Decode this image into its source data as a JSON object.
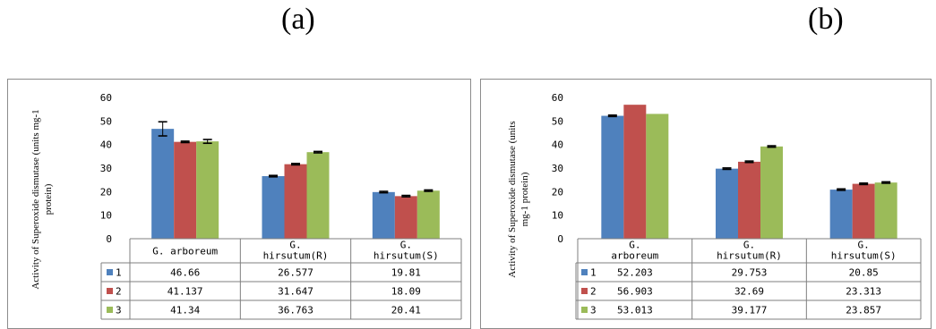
{
  "panels": [
    {
      "label": "(a)"
    },
    {
      "label": "(b)"
    }
  ],
  "chart_data": [
    {
      "type": "bar",
      "ylabel": "Activity of Superoxide dismutase (units mg-1 protein)",
      "ylabel_lines": [
        "Activity of Superoxide dismutase (units mg-1",
        "protein)"
      ],
      "ylim": [
        0,
        60
      ],
      "yticks": [
        "0",
        "10",
        "20",
        "30",
        "40",
        "50",
        "60"
      ],
      "categories": [
        "G. arboreum",
        "G. hirsutum(R)",
        "G. hirsutum(S)"
      ],
      "category_lines": [
        [
          "G. arboreum"
        ],
        [
          "G.",
          "hirsutum(R)"
        ],
        [
          "G.",
          "hirsutum(S)"
        ]
      ],
      "grid": false,
      "legend": "data-table",
      "series": [
        {
          "name": "1",
          "color": "#4f81bd",
          "values": [
            46.66,
            26.577,
            19.81
          ],
          "labels": [
            "46.66",
            "26.577",
            "19.81"
          ],
          "errors": [
            3.0,
            0.3,
            0.3
          ]
        },
        {
          "name": "2",
          "color": "#c0504d",
          "values": [
            41.137,
            31.647,
            18.09
          ],
          "labels": [
            "41.137",
            "31.647",
            "18.09"
          ],
          "errors": [
            0.3,
            0.3,
            0.3
          ]
        },
        {
          "name": "3",
          "color": "#9bbb59",
          "values": [
            41.34,
            36.763,
            20.41
          ],
          "labels": [
            "41.34",
            "36.763",
            "20.41"
          ],
          "errors": [
            0.8,
            0.3,
            0.3
          ]
        }
      ]
    },
    {
      "type": "bar",
      "ylabel": "Activity of Superoxide dismutase (units mg-1 protein)",
      "ylabel_lines": [
        "Activity of Superoxide dismutase (units",
        "mg-1 protein)"
      ],
      "ylim": [
        0,
        60
      ],
      "yticks": [
        "O",
        "10",
        "20",
        "30",
        "40",
        "50",
        "60"
      ],
      "categories": [
        "G. arboreum",
        "G. hirsutum(R)",
        "G. hirsutum(S)"
      ],
      "category_lines": [
        [
          "G.",
          "arboreum"
        ],
        [
          "G.",
          "hirsutum(R)"
        ],
        [
          "G.",
          "hirsutum(S)"
        ]
      ],
      "grid": false,
      "legend": "data-table",
      "series": [
        {
          "name": "1",
          "color": "#4f81bd",
          "values": [
            52.203,
            29.753,
            20.85
          ],
          "labels": [
            "52.203",
            "29.753",
            "20.85"
          ],
          "errors": [
            0.3,
            0.3,
            0.3
          ]
        },
        {
          "name": "2",
          "color": "#c0504d",
          "values": [
            56.903,
            32.69,
            23.313
          ],
          "labels": [
            "56.903",
            "32.69",
            "23.313"
          ],
          "errors": [
            0,
            0.3,
            0.3
          ]
        },
        {
          "name": "3",
          "color": "#9bbb59",
          "values": [
            53.013,
            39.177,
            23.857
          ],
          "labels": [
            "53.013",
            "39.177",
            "23.857"
          ],
          "errors": [
            0,
            0.3,
            0.3
          ]
        }
      ]
    }
  ]
}
